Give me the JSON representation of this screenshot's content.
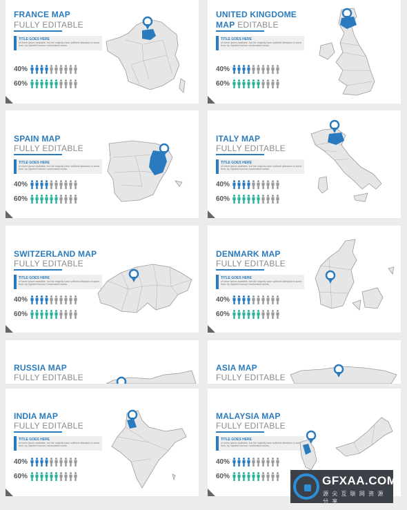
{
  "colors": {
    "accent": "#2a7bbd",
    "teal": "#2bb19a",
    "gray": "#9a9a9a",
    "map": "#e6e6e6"
  },
  "cards": [
    {
      "title": "FRANCE MAP",
      "subtitle": "FULLY EDITABLE",
      "map": "france"
    },
    {
      "title": "UNITED KINGDOME",
      "subtitle_accent": "MAP",
      "subtitle": "EDITABLE",
      "map": "uk"
    },
    {
      "title": "SPAIN MAP",
      "subtitle": "FULLY EDITABLE",
      "map": "spain"
    },
    {
      "title": "ITALY MAP",
      "subtitle": "FULLY EDITABLE",
      "map": "italy"
    },
    {
      "title": "SWITZERLAND MAP",
      "subtitle": "FULLY EDITABLE",
      "map": "switzerland"
    },
    {
      "title": "DENMARK MAP",
      "subtitle": "FULLY EDITABLE",
      "map": "denmark"
    },
    {
      "title": "RUSSIA MAP",
      "subtitle": "FULLY EDITABLE",
      "map": "russia"
    },
    {
      "title": "ASIA MAP",
      "subtitle": "FULLY EDITABLE",
      "map": "asia"
    },
    {
      "title": "INDIA MAP",
      "subtitle": "FULLY EDITABLE",
      "map": "india"
    },
    {
      "title": "MALAYSIA MAP",
      "subtitle": "FULLY EDITABLE",
      "map": "malaysia"
    }
  ],
  "textbox": {
    "heading": "TITLE GOES HERE",
    "body": "of lorem ipsum available, but the majority have suffered alteration in some form, by injected humour randomised words."
  },
  "stats": [
    {
      "label": "40%",
      "filled": 4,
      "total": 10,
      "color": "blue"
    },
    {
      "label": "60%",
      "filled": 6,
      "total": 10,
      "color": "teal"
    }
  ],
  "watermark": {
    "name": "GFXAA.COM",
    "tagline": "源 尖 互 联 网 资 源 分 享"
  }
}
